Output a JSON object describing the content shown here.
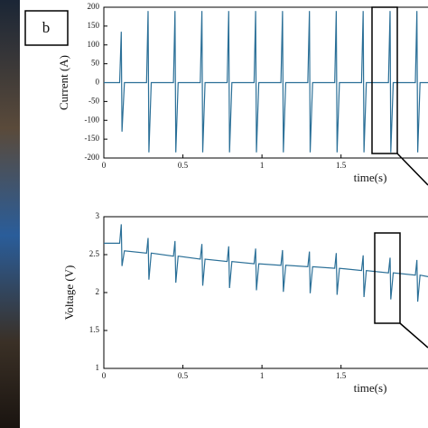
{
  "panel_label": "b",
  "chart_data": [
    {
      "type": "line",
      "ylabel": "Current (A)",
      "xlabel": "time(s)",
      "color": "#2a6f97",
      "x": [
        0,
        0.1,
        0.11,
        0.115,
        0.13,
        0.27,
        0.28,
        0.285,
        0.3,
        0.44,
        0.45,
        0.455,
        0.47,
        0.61,
        0.62,
        0.625,
        0.64,
        0.78,
        0.79,
        0.795,
        0.81,
        0.95,
        0.96,
        0.965,
        0.98,
        1.12,
        1.13,
        1.135,
        1.15,
        1.29,
        1.3,
        1.305,
        1.32,
        1.46,
        1.47,
        1.475,
        1.49,
        1.63,
        1.64,
        1.645,
        1.66,
        1.8,
        1.81,
        1.815,
        1.83,
        1.97,
        1.98,
        1.985,
        2,
        2.05
      ],
      "values": [
        0,
        0,
        135,
        -130,
        0,
        0,
        190,
        -185,
        0,
        0,
        190,
        -185,
        0,
        0,
        190,
        -185,
        0,
        0,
        190,
        -185,
        0,
        0,
        190,
        -185,
        0,
        0,
        190,
        -185,
        0,
        0,
        190,
        -185,
        0,
        0,
        190,
        -185,
        0,
        0,
        190,
        -185,
        0,
        0,
        190,
        -185,
        0,
        0,
        190,
        -185,
        0,
        0
      ],
      "xlim": [
        0,
        2.05
      ],
      "ylim": [
        -200,
        200
      ],
      "xticks": [
        0,
        0.5,
        1,
        1.5
      ],
      "yticks": [
        200,
        150,
        100,
        50,
        0,
        -50,
        -100,
        -150,
        -200
      ]
    },
    {
      "type": "line",
      "ylabel": "Voltage (V)",
      "xlabel": "time(s)",
      "color": "#2a6f97",
      "x": [
        0,
        0.1,
        0.11,
        0.115,
        0.13,
        0.27,
        0.28,
        0.285,
        0.3,
        0.44,
        0.45,
        0.455,
        0.47,
        0.61,
        0.62,
        0.625,
        0.64,
        0.78,
        0.79,
        0.795,
        0.81,
        0.95,
        0.96,
        0.965,
        0.98,
        1.12,
        1.13,
        1.135,
        1.15,
        1.29,
        1.3,
        1.305,
        1.32,
        1.46,
        1.47,
        1.475,
        1.49,
        1.63,
        1.64,
        1.645,
        1.66,
        1.8,
        1.81,
        1.815,
        1.83,
        1.97,
        1.98,
        1.985,
        2,
        2.05
      ],
      "values": [
        2.65,
        2.65,
        2.9,
        2.35,
        2.55,
        2.52,
        2.72,
        2.17,
        2.52,
        2.48,
        2.68,
        2.13,
        2.48,
        2.44,
        2.64,
        2.09,
        2.44,
        2.41,
        2.61,
        2.06,
        2.41,
        2.38,
        2.58,
        2.03,
        2.38,
        2.36,
        2.56,
        2.01,
        2.36,
        2.34,
        2.54,
        1.99,
        2.34,
        2.32,
        2.52,
        1.97,
        2.32,
        2.29,
        2.49,
        1.94,
        2.29,
        2.26,
        2.46,
        1.91,
        2.26,
        2.23,
        2.43,
        1.88,
        2.23,
        2.21
      ],
      "xlim": [
        0,
        2.05
      ],
      "ylim": [
        1,
        3
      ],
      "xticks": [
        0,
        0.5,
        1,
        1.5
      ],
      "yticks": [
        1,
        1.5,
        2,
        2.5,
        3
      ]
    }
  ]
}
